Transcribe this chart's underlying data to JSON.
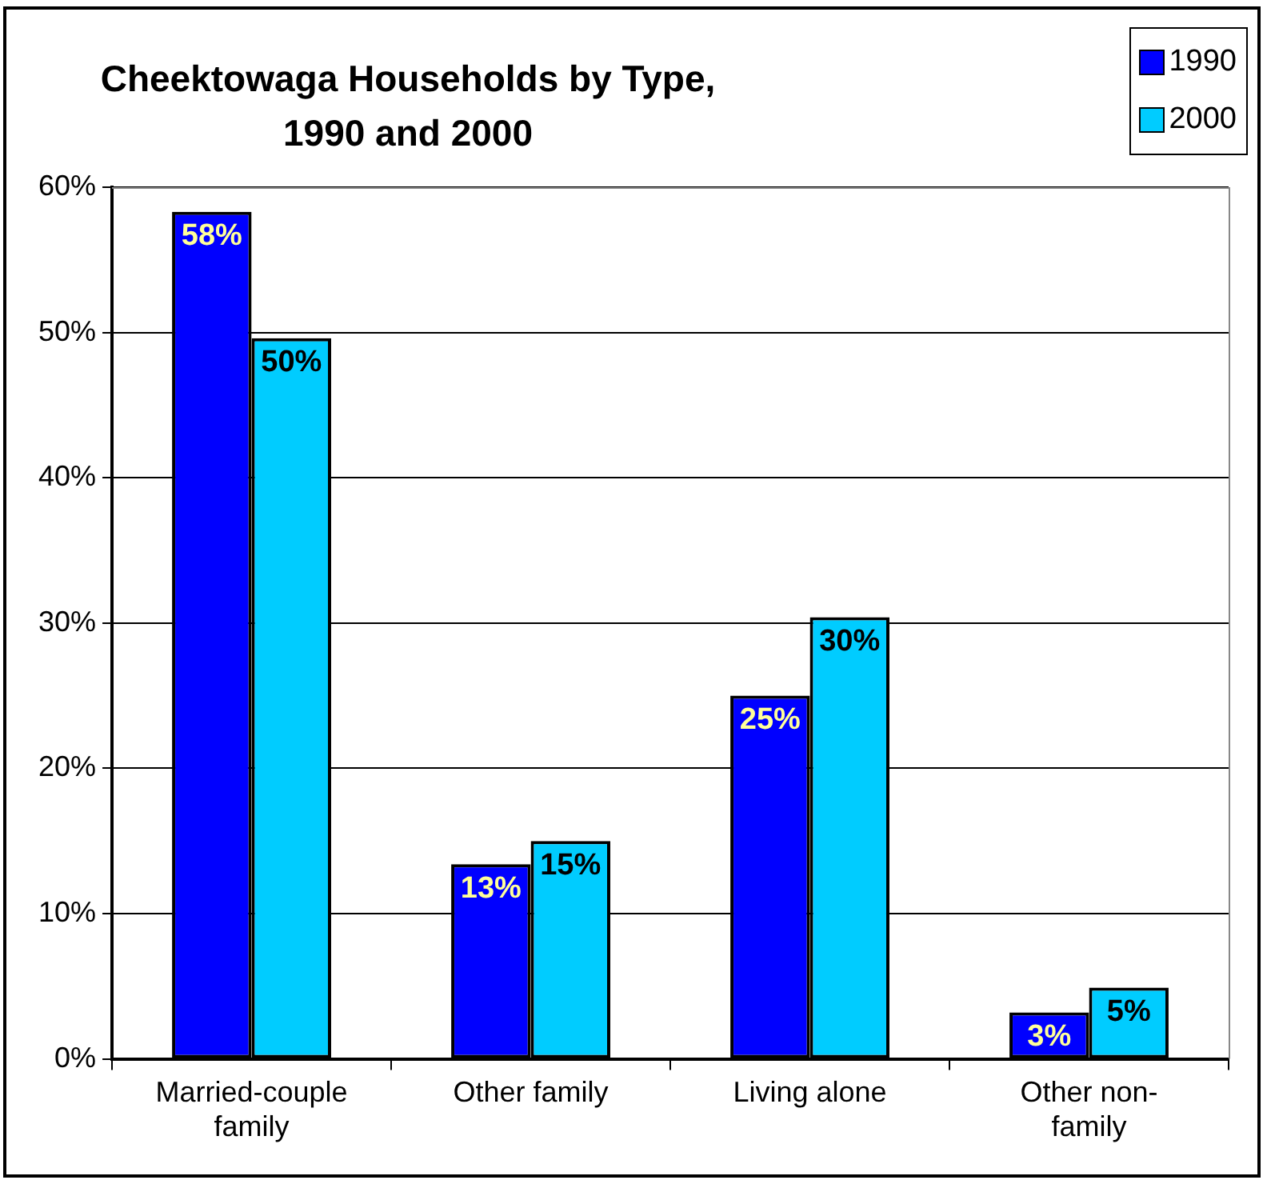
{
  "chart_data": {
    "type": "bar",
    "title": "Cheektowaga Households by Type, 1990 and 2000",
    "categories": [
      "Married-couple family",
      "Other family",
      "Living alone",
      "Other non-family"
    ],
    "series": [
      {
        "name": "1990",
        "color": "#0000ff",
        "values": [
          58.3,
          13.4,
          25,
          3.2
        ],
        "value_labels": [
          "58%",
          "13%",
          "25%",
          "3%"
        ]
      },
      {
        "name": "2000",
        "color": "#00ccff",
        "values": [
          49.6,
          15,
          30.4,
          4.9
        ],
        "value_labels": [
          "50%",
          "15%",
          "30%",
          "5%"
        ]
      }
    ],
    "ylim": [
      0,
      60
    ],
    "yticks": [
      {
        "value": 0,
        "label": "0%"
      },
      {
        "value": 10,
        "label": "10%"
      },
      {
        "value": 20,
        "label": "20%"
      },
      {
        "value": 30,
        "label": "30%"
      },
      {
        "value": 40,
        "label": "40%"
      },
      {
        "value": 50,
        "label": "50%"
      },
      {
        "value": 60,
        "label": "60%"
      }
    ],
    "grid": "y",
    "legend": "top right"
  }
}
